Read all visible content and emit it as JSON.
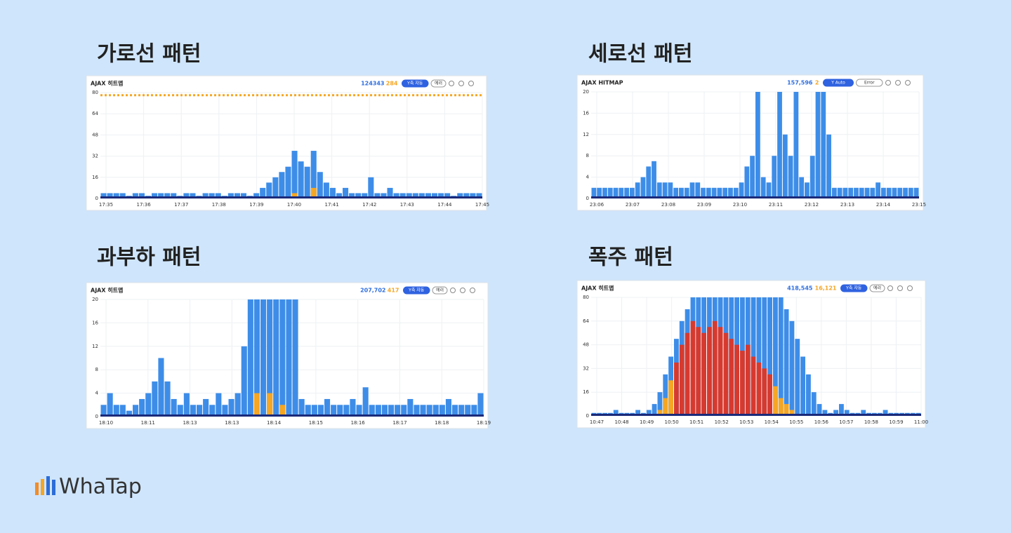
{
  "chart_data": [
    {
      "type": "heatmap",
      "title": "가로선 패턴",
      "header": "AJAX 히트맵",
      "count": "124343",
      "error_count": "284",
      "buttons": [
        "Y축 자동",
        "에러"
      ],
      "ylim": [
        0,
        80
      ],
      "yticks": [
        0,
        16,
        32,
        48,
        64,
        80
      ],
      "xticks": [
        "17:35",
        "17:36",
        "17:37",
        "17:38",
        "17:39",
        "17:40",
        "17:41",
        "17:42",
        "17:43",
        "17:44",
        "17:45"
      ],
      "line_value": 78,
      "columns": [
        4,
        4,
        4,
        4,
        2,
        4,
        4,
        2,
        4,
        4,
        4,
        4,
        2,
        4,
        4,
        2,
        4,
        4,
        4,
        2,
        4,
        4,
        4,
        2,
        4,
        8,
        12,
        16,
        20,
        24,
        36,
        28,
        24,
        36,
        20,
        12,
        8,
        4,
        8,
        4,
        4,
        4,
        16,
        4,
        4,
        8,
        4,
        4,
        4,
        4,
        4,
        4,
        4,
        4,
        4,
        2,
        4,
        4,
        4,
        4
      ],
      "error_columns": [
        0,
        0,
        0,
        0,
        0,
        0,
        0,
        0,
        0,
        0,
        0,
        0,
        0,
        0,
        0,
        0,
        0,
        0,
        0,
        0,
        0,
        0,
        0,
        0,
        0,
        0,
        0,
        0,
        0,
        0,
        4,
        0,
        0,
        8,
        0,
        0,
        0,
        0,
        0,
        0,
        0,
        0,
        0,
        0,
        0,
        0,
        0,
        0,
        0,
        0,
        0,
        0,
        0,
        0,
        0,
        0,
        0,
        0,
        0,
        0
      ]
    },
    {
      "type": "heatmap",
      "title": "세로선 패턴",
      "header": "AJAX HITMAP",
      "count": "157,596",
      "error_count": "2",
      "buttons": [
        "Y Auto",
        "Error"
      ],
      "ylim": [
        0,
        20
      ],
      "yticks": [
        0,
        4,
        8,
        12,
        16,
        20
      ],
      "xticks": [
        "23:06",
        "23:07",
        "23:08",
        "23:09",
        "23:10",
        "23:11",
        "23:12",
        "23:13",
        "23:14",
        "23:15"
      ],
      "columns": [
        2,
        2,
        2,
        2,
        2,
        2,
        2,
        2,
        3,
        4,
        6,
        7,
        3,
        3,
        3,
        2,
        2,
        2,
        3,
        3,
        2,
        2,
        2,
        2,
        2,
        2,
        2,
        3,
        6,
        8,
        20,
        4,
        3,
        8,
        20,
        12,
        8,
        20,
        4,
        3,
        8,
        20,
        20,
        12,
        2,
        2,
        2,
        2,
        2,
        2,
        2,
        2,
        3,
        2,
        2,
        2,
        2,
        2,
        2,
        2
      ]
    },
    {
      "type": "heatmap",
      "title": "과부하 패턴",
      "header": "AJAX 히트맵",
      "count": "207,702",
      "error_count": "417",
      "buttons": [
        "Y축 자동",
        "에러"
      ],
      "ylim": [
        0,
        20
      ],
      "yticks": [
        0,
        4,
        8,
        12,
        16,
        20
      ],
      "xticks": [
        "18:10",
        "18:11",
        "18:13",
        "18:13",
        "18:14",
        "18:15",
        "18:16",
        "18:17",
        "18:18",
        "18:19"
      ],
      "columns": [
        2,
        4,
        2,
        2,
        1,
        2,
        3,
        4,
        6,
        10,
        6,
        3,
        2,
        4,
        2,
        2,
        3,
        2,
        4,
        2,
        3,
        4,
        12,
        20,
        20,
        20,
        20,
        20,
        20,
        20,
        20,
        3,
        2,
        2,
        2,
        3,
        2,
        2,
        2,
        3,
        2,
        5,
        2,
        2,
        2,
        2,
        2,
        2,
        3,
        2,
        2,
        2,
        2,
        2,
        3,
        2,
        2,
        2,
        2,
        4
      ],
      "error_columns": [
        0,
        0,
        0,
        0,
        0,
        0,
        0,
        0,
        0,
        0,
        0,
        0,
        0,
        0,
        0,
        0,
        0,
        0,
        0,
        0,
        0,
        0,
        0,
        0,
        4,
        0,
        4,
        0,
        2,
        0,
        0,
        0,
        0,
        0,
        0,
        0,
        0,
        0,
        0,
        0,
        0,
        0,
        0,
        0,
        0,
        0,
        0,
        0,
        0,
        0,
        0,
        0,
        0,
        0,
        0,
        0,
        0,
        0,
        0,
        0
      ]
    },
    {
      "type": "heatmap",
      "title": "폭주 패턴",
      "header": "AJAX 히트맵",
      "count": "418,545",
      "error_count": "16,121",
      "buttons": [
        "Y축 자동",
        "에러"
      ],
      "ylim": [
        0,
        80
      ],
      "yticks": [
        0,
        16,
        32,
        48,
        64,
        80
      ],
      "xticks": [
        "10:47",
        "10:48",
        "10:49",
        "10:50",
        "10:51",
        "10:52",
        "10:53",
        "10:54",
        "10:55",
        "10:56",
        "10:57",
        "10:58",
        "10:59",
        "11:00"
      ],
      "columns": [
        2,
        2,
        2,
        2,
        4,
        2,
        2,
        2,
        4,
        2,
        4,
        8,
        16,
        28,
        40,
        52,
        64,
        72,
        80,
        80,
        80,
        80,
        80,
        80,
        80,
        80,
        80,
        80,
        80,
        80,
        80,
        80,
        80,
        80,
        80,
        72,
        64,
        52,
        40,
        28,
        16,
        8,
        4,
        2,
        4,
        8,
        4,
        2,
        2,
        4,
        2,
        2,
        2,
        4,
        2,
        2,
        2,
        2,
        2,
        2
      ],
      "error_columns": [
        0,
        0,
        0,
        0,
        0,
        0,
        0,
        0,
        0,
        0,
        0,
        0,
        4,
        12,
        24,
        36,
        48,
        56,
        64,
        60,
        56,
        60,
        64,
        60,
        56,
        52,
        48,
        44,
        48,
        40,
        36,
        32,
        28,
        20,
        12,
        8,
        4,
        0,
        0,
        0,
        0,
        0,
        0,
        0,
        0,
        0,
        0,
        0,
        0,
        0,
        0,
        0,
        0,
        0,
        0,
        0,
        0,
        0,
        0,
        0
      ]
    }
  ],
  "logo": "WhaTap"
}
